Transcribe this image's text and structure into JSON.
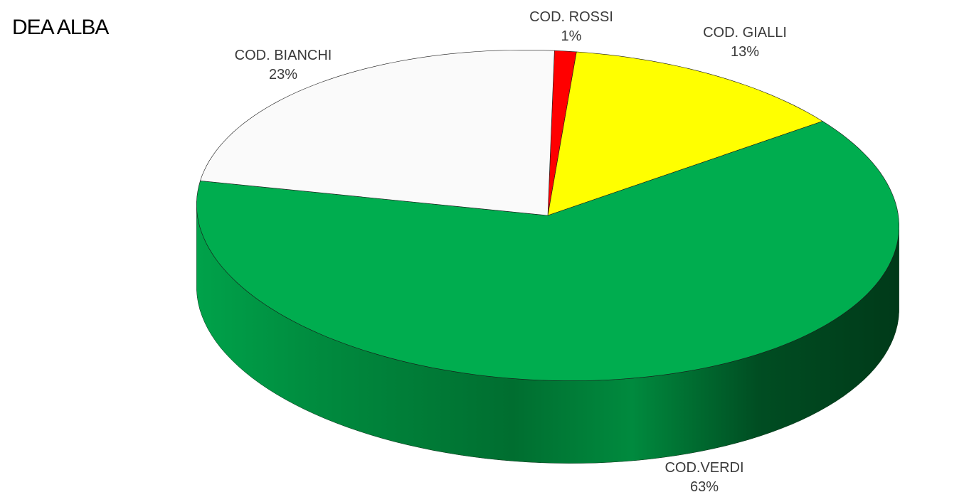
{
  "chart_data": {
    "type": "pie",
    "title": "DEA ALBA",
    "slices": [
      {
        "label": "COD. ROSSI",
        "value": 1,
        "value_label": "1%",
        "color": "#ff0000"
      },
      {
        "label": "COD. GIALLI",
        "value": 13,
        "value_label": "13%",
        "color": "#ffff00"
      },
      {
        "label": "COD.VERDI",
        "value": 63,
        "value_label": "63%",
        "color": "#00ad4f"
      },
      {
        "label": "COD. BIANCHI",
        "value": 23,
        "value_label": "23%",
        "color": "#fafafa"
      }
    ],
    "style": "3d"
  }
}
